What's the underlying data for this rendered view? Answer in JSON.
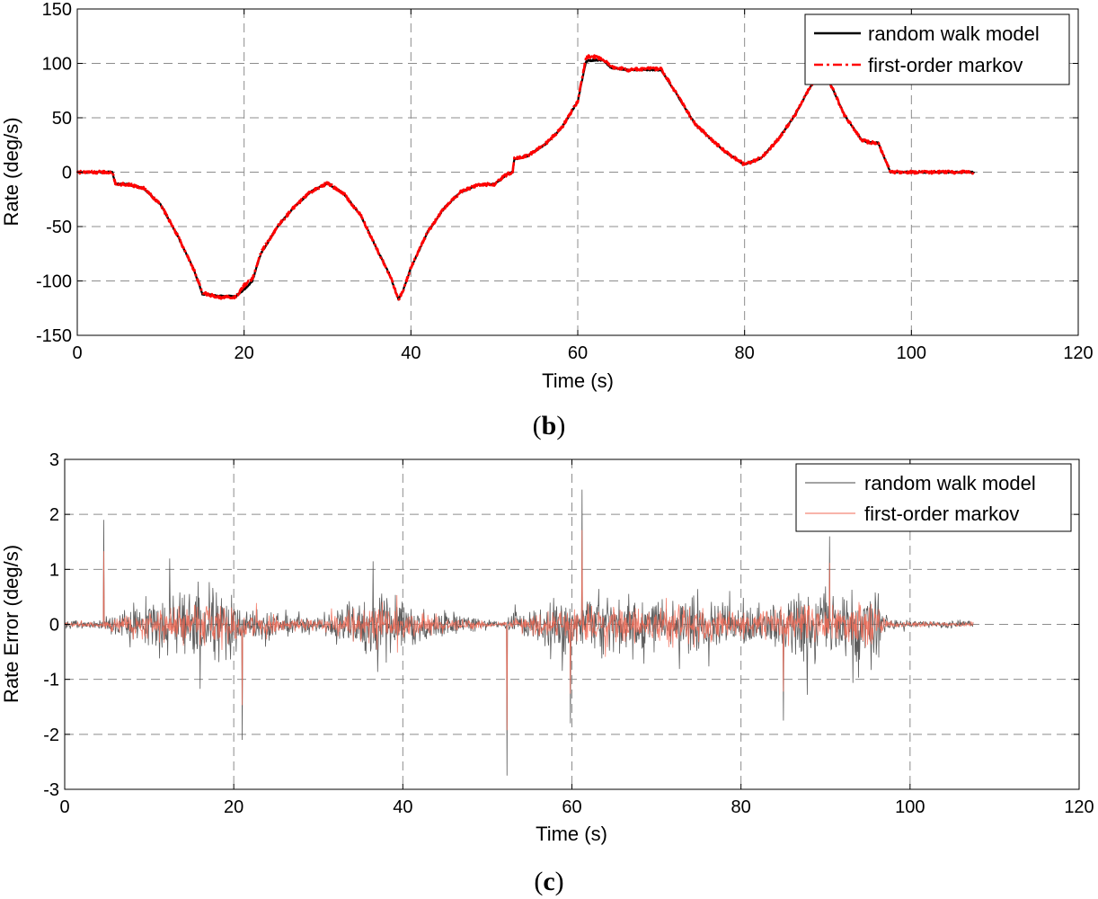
{
  "chart_data": [
    {
      "id": "b",
      "type": "line",
      "caption": "b",
      "xlabel": "Time (s)",
      "ylabel": "Rate (deg/s)",
      "xlim": [
        0,
        120
      ],
      "ylim": [
        -150,
        150
      ],
      "xticks": [
        0,
        20,
        40,
        60,
        80,
        100,
        120
      ],
      "yticks": [
        -150,
        -100,
        -50,
        0,
        50,
        100,
        150
      ],
      "grid": true,
      "legend_position": "top-right",
      "series": [
        {
          "name": "random walk model",
          "color": "#000000",
          "style": "solid",
          "noise": 0.7,
          "x": [
            0,
            4.2,
            4.6,
            6,
            8,
            10,
            12,
            14,
            15,
            16,
            17,
            18,
            19,
            20,
            21,
            22,
            24,
            26,
            28,
            30,
            32,
            34,
            36,
            37.5,
            38.5,
            39,
            40,
            42,
            44,
            46,
            48,
            50,
            51.5,
            52.2,
            52.4,
            54,
            56,
            58,
            60,
            61,
            62,
            63,
            64,
            66,
            68,
            70,
            72,
            74,
            76,
            78,
            80,
            82,
            84,
            86,
            88,
            89,
            90,
            92,
            94,
            95,
            96,
            97.5,
            99,
            102,
            107.5
          ],
          "values": [
            0,
            0,
            -11,
            -11,
            -15,
            -30,
            -58,
            -90,
            -112,
            -113,
            -114,
            -114,
            -114,
            -108,
            -100,
            -75,
            -50,
            -32,
            -18,
            -10,
            -20,
            -40,
            -72,
            -95,
            -117,
            -110,
            -88,
            -55,
            -33,
            -18,
            -12,
            -11,
            -2,
            0,
            12,
            15,
            25,
            40,
            65,
            102,
            103,
            103,
            96,
            94,
            94,
            94,
            70,
            45,
            30,
            17,
            7,
            13,
            30,
            52,
            80,
            94,
            86,
            52,
            30,
            27,
            27,
            0,
            0,
            0,
            0
          ]
        },
        {
          "name": "first-order markov",
          "color": "#ff0000",
          "style": "dashdot",
          "noise": 1.4,
          "x": [
            0,
            4.2,
            4.6,
            6,
            8,
            10,
            12,
            14,
            15,
            16,
            17,
            18,
            19,
            20,
            21,
            22,
            24,
            26,
            28,
            30,
            32,
            34,
            36,
            37.5,
            38.5,
            39,
            40,
            42,
            44,
            46,
            48,
            50,
            51.5,
            52.2,
            52.4,
            54,
            56,
            58,
            60,
            61,
            62,
            63,
            64,
            66,
            68,
            70,
            72,
            74,
            76,
            78,
            80,
            82,
            84,
            86,
            88,
            89,
            90,
            92,
            94,
            95,
            96,
            97.5,
            99,
            102,
            107.5
          ],
          "values": [
            0,
            0,
            -11,
            -11,
            -15,
            -30,
            -58,
            -90,
            -111,
            -113,
            -115,
            -115,
            -115,
            -104,
            -98,
            -74,
            -50,
            -32,
            -18,
            -10,
            -20,
            -40,
            -72,
            -95,
            -117,
            -110,
            -88,
            -55,
            -33,
            -18,
            -12,
            -11,
            -2,
            0,
            13,
            15,
            25,
            40,
            65,
            106,
            106,
            104,
            97,
            94,
            95,
            95,
            70,
            45,
            30,
            17,
            7,
            13,
            30,
            52,
            80,
            94,
            86,
            52,
            30,
            27,
            27,
            0,
            0,
            0,
            0
          ]
        }
      ]
    },
    {
      "id": "c",
      "type": "line",
      "caption": "c",
      "xlabel": "Time (s)",
      "ylabel": "Rate Error (deg/s)",
      "xlim": [
        0,
        120
      ],
      "ylim": [
        -3,
        3
      ],
      "xticks": [
        0,
        20,
        40,
        60,
        80,
        100,
        120
      ],
      "yticks": [
        -3,
        -2,
        -1,
        0,
        1,
        2,
        3
      ],
      "grid": true,
      "legend_position": "top-right",
      "x_range": [
        0,
        107.5
      ],
      "envelope": {
        "x": [
          0,
          4,
          8,
          12,
          16,
          20,
          22,
          26,
          30,
          34,
          37,
          38.5,
          40,
          44,
          48,
          50,
          52,
          53,
          56,
          60,
          64,
          68,
          72,
          76,
          80,
          84,
          88,
          92,
          96,
          97.5,
          100,
          107.5
        ],
        "amplitude": [
          0.1,
          0.12,
          0.5,
          0.8,
          0.9,
          0.75,
          0.5,
          0.3,
          0.2,
          0.6,
          0.9,
          0.7,
          0.6,
          0.4,
          0.2,
          0.12,
          0.1,
          0.3,
          0.5,
          0.7,
          0.75,
          0.75,
          0.75,
          0.7,
          0.5,
          0.6,
          0.9,
          0.9,
          0.85,
          0.12,
          0.1,
          0.1
        ]
      },
      "spikes": [
        {
          "x": 4.6,
          "y": 1.9
        },
        {
          "x": 21,
          "y": -2.1
        },
        {
          "x": 52.3,
          "y": -2.75
        },
        {
          "x": 61.2,
          "y": 2.45
        },
        {
          "x": 59.8,
          "y": -1.8
        },
        {
          "x": 90.5,
          "y": 1.6
        },
        {
          "x": 85,
          "y": -1.75
        }
      ],
      "series": [
        {
          "name": "random walk model",
          "color": "#4a4a4a",
          "scale": 1.0
        },
        {
          "name": "first-order markov",
          "color": "#f26a55",
          "scale": 0.6
        }
      ]
    }
  ]
}
